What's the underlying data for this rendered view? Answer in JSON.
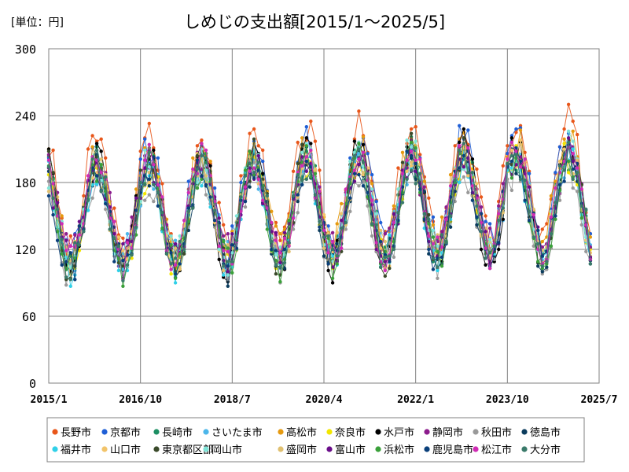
{
  "chart_data": {
    "type": "line",
    "title": "しめじの支出額[2015/1～2025/5]",
    "unit_label": "[単位：円]",
    "xlabel": "",
    "ylabel": "",
    "ylim": [
      0,
      300
    ],
    "yticks": [
      0,
      60,
      120,
      180,
      240,
      300
    ],
    "ytick_labels": [
      "0",
      "60",
      "120",
      "180",
      "240",
      "300"
    ],
    "x_range": [
      "2015/1",
      "2025/7"
    ],
    "xtick_labels": [
      "2015/1",
      "2016/10",
      "2018/7",
      "2020/4",
      "2022/1",
      "2023/10",
      "2025/7"
    ],
    "xtick_positions": [
      0,
      21,
      42,
      63,
      84,
      105,
      126
    ],
    "x_months_total": 126,
    "n_points": 125,
    "grid": true,
    "legend_position": "bottom",
    "series": [
      {
        "name": "長野市",
        "color": "#e8561a",
        "base": 168,
        "amp": 52,
        "peak": 11,
        "trend": 0.12,
        "seed": 3
      },
      {
        "name": "京都市",
        "color": "#1f5fd6",
        "base": 160,
        "amp": 46,
        "peak": 11,
        "trend": 0.15,
        "seed": 7
      },
      {
        "name": "長崎市",
        "color": "#1d8f63",
        "base": 152,
        "amp": 44,
        "peak": 11,
        "trend": 0.1,
        "seed": 11
      },
      {
        "name": "さいたま市",
        "color": "#4cb6ea",
        "base": 150,
        "amp": 40,
        "peak": 11,
        "trend": 0.12,
        "seed": 13
      },
      {
        "name": "高松市",
        "color": "#e69a10",
        "base": 158,
        "amp": 44,
        "peak": 11,
        "trend": 0.14,
        "seed": 17
      },
      {
        "name": "奈良市",
        "color": "#f2e600",
        "base": 148,
        "amp": 42,
        "peak": 11,
        "trend": 0.12,
        "seed": 19
      },
      {
        "name": "水戸市",
        "color": "#000000",
        "base": 150,
        "amp": 52,
        "peak": 11,
        "trend": 0.1,
        "seed": 23
      },
      {
        "name": "静岡市",
        "color": "#8c1c8c",
        "base": 155,
        "amp": 40,
        "peak": 11,
        "trend": 0.08,
        "seed": 29
      },
      {
        "name": "秋田市",
        "color": "#999999",
        "base": 140,
        "amp": 42,
        "peak": 11,
        "trend": 0.12,
        "seed": 31
      },
      {
        "name": "徳島市",
        "color": "#0b3c5d",
        "base": 145,
        "amp": 46,
        "peak": 11,
        "trend": 0.12,
        "seed": 37
      },
      {
        "name": "福井市",
        "color": "#30d0e8",
        "base": 145,
        "amp": 44,
        "peak": 11,
        "trend": 0.12,
        "seed": 41
      },
      {
        "name": "山口市",
        "color": "#f2c46a",
        "base": 150,
        "amp": 44,
        "peak": 11,
        "trend": 0.13,
        "seed": 43
      },
      {
        "name": "東京都区部",
        "color": "#3a4a2a",
        "base": 150,
        "amp": 48,
        "peak": 11,
        "trend": 0.12,
        "seed": 47
      },
      {
        "name": "岡山市",
        "color": "#80e4d8",
        "base": 152,
        "amp": 46,
        "peak": 11,
        "trend": 0.11,
        "seed": 53
      },
      {
        "name": "盛岡市",
        "color": "#e0c070",
        "base": 150,
        "amp": 44,
        "peak": 11,
        "trend": 0.12,
        "seed": 59
      },
      {
        "name": "富山市",
        "color": "#6a0d8a",
        "base": 150,
        "amp": 42,
        "peak": 11,
        "trend": 0.1,
        "seed": 61
      },
      {
        "name": "浜松市",
        "color": "#3aa03a",
        "base": 148,
        "amp": 46,
        "peak": 11,
        "trend": 0.11,
        "seed": 67
      },
      {
        "name": "鹿児島市",
        "color": "#0a3f7a",
        "base": 145,
        "amp": 44,
        "peak": 11,
        "trend": 0.12,
        "seed": 71
      },
      {
        "name": "松江市",
        "color": "#d02cb4",
        "base": 152,
        "amp": 46,
        "peak": 11,
        "trend": 0.11,
        "seed": 73
      },
      {
        "name": "大分市",
        "color": "#3a7a6a",
        "base": 148,
        "amp": 44,
        "peak": 11,
        "trend": 0.11,
        "seed": 79
      }
    ]
  }
}
